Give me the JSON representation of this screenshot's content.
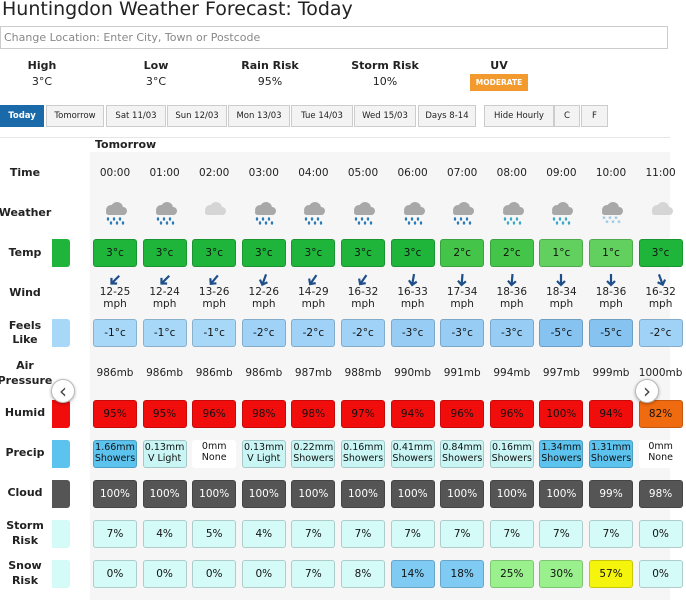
{
  "header": {
    "title": "Huntingdon Weather Forecast: Today",
    "search_placeholder": "Change Location: Enter City, Town or Postcode"
  },
  "summary": [
    {
      "label": "High",
      "value": "3°C"
    },
    {
      "label": "Low",
      "value": "3°C"
    },
    {
      "label": "Rain Risk",
      "value": "95%"
    },
    {
      "label": "Storm Risk",
      "value": "10%"
    },
    {
      "label": "UV",
      "value": "MODERATE"
    }
  ],
  "tabs": [
    "Today",
    "Tomorrow",
    "Sat 11/03",
    "Sun 12/03",
    "Mon 13/03",
    "Tue 14/03",
    "Wed 15/03",
    "Days 8-14"
  ],
  "options": [
    "Hide Hourly",
    "C",
    "F"
  ],
  "hourly": {
    "day": "Tomorrow",
    "time": {
      "label": "Time",
      "cells": [
        "00:00",
        "01:00",
        "02:00",
        "03:00",
        "04:00",
        "05:00",
        "06:00",
        "07:00",
        "08:00",
        "09:00",
        "10:00",
        "11:00"
      ]
    },
    "weather": {
      "label": "Weather",
      "icons": [
        "rain",
        "rain",
        "cloud",
        "rain",
        "rain",
        "rain",
        "rain",
        "rain",
        "sleet",
        "sleet",
        "snow",
        "cloud"
      ]
    },
    "temp": {
      "label": "Temp",
      "cells": [
        "3°c",
        "3°c",
        "3°c",
        "3°c",
        "3°c",
        "3°c",
        "3°c",
        "2°c",
        "2°c",
        "1°c",
        "1°c",
        "3°c"
      ],
      "colors": [
        "#1fb53b",
        "#1fb53b",
        "#1fb53b",
        "#1fb53b",
        "#1fb53b",
        "#1fb53b",
        "#1fb53b",
        "#45c44a",
        "#45c44a",
        "#62d05e",
        "#62d05e",
        "#1fb53b"
      ]
    },
    "wind": {
      "label": "Wind",
      "speeds": [
        "12-25",
        "12-24",
        "13-26",
        "12-26",
        "14-29",
        "16-32",
        "16-33",
        "17-34",
        "18-36",
        "18-34",
        "18-36",
        "16-32"
      ],
      "unit": "mph",
      "arrows": [
        225,
        225,
        220,
        200,
        215,
        215,
        190,
        185,
        185,
        180,
        180,
        160
      ]
    },
    "feels": {
      "label": "Feels Like",
      "cells": [
        "-1°c",
        "-1°c",
        "-1°c",
        "-2°c",
        "-2°c",
        "-2°c",
        "-3°c",
        "-3°c",
        "-3°c",
        "-5°c",
        "-5°c",
        "-2°c"
      ],
      "colors": [
        "#a8d8f8",
        "#a8d8f8",
        "#a8d8f8",
        "#9fd2f6",
        "#9fd2f6",
        "#9fd2f6",
        "#97cdf4",
        "#97cdf4",
        "#97cdf4",
        "#86c3f0",
        "#86c3f0",
        "#9fd2f6"
      ]
    },
    "pressure": {
      "label": "Air Pressure",
      "cells": [
        "986mb",
        "986mb",
        "986mb",
        "986mb",
        "987mb",
        "988mb",
        "990mb",
        "991mb",
        "994mb",
        "997mb",
        "999mb",
        "1000mb"
      ]
    },
    "humid": {
      "label": "Humid",
      "cells": [
        "95%",
        "95%",
        "96%",
        "98%",
        "98%",
        "97%",
        "94%",
        "96%",
        "96%",
        "100%",
        "94%",
        "82%"
      ],
      "colors": [
        "#f20d0d",
        "#f20d0d",
        "#f20d0d",
        "#f20d0d",
        "#f20d0d",
        "#f20d0d",
        "#f20d0d",
        "#f20d0d",
        "#f20d0d",
        "#f20d0d",
        "#f20d0d",
        "#f06a10"
      ]
    },
    "precip": {
      "label": "Precip",
      "amounts": [
        "1.66mm",
        "0.13mm",
        "0mm",
        "0.13mm",
        "0.22mm",
        "0.16mm",
        "0.41mm",
        "0.84mm",
        "0.16mm",
        "1.34mm",
        "1.31mm",
        "0mm"
      ],
      "kinds": [
        "Showers",
        "V Light",
        "None",
        "V Light",
        "Showers",
        "Showers",
        "Showers",
        "Showers",
        "Showers",
        "Showers",
        "Showers",
        "None"
      ],
      "colors": [
        "#5cc2ee",
        "#c9f6f4",
        "#ffffff",
        "#c9f6f4",
        "#c9f6f4",
        "#c9f6f4",
        "#c9f6f4",
        "#c9f6f4",
        "#c9f6f4",
        "#5cc2ee",
        "#5cc2ee",
        "#ffffff"
      ]
    },
    "cloud": {
      "label": "Cloud",
      "cells": [
        "100%",
        "100%",
        "100%",
        "100%",
        "100%",
        "100%",
        "100%",
        "100%",
        "100%",
        "100%",
        "99%",
        "98%"
      ],
      "color": "#555555"
    },
    "storm": {
      "label": "Storm Risk",
      "cells": [
        "7%",
        "4%",
        "5%",
        "4%",
        "7%",
        "7%",
        "7%",
        "7%",
        "7%",
        "7%",
        "7%",
        "0%"
      ],
      "color": "#d4fbf8"
    },
    "snow": {
      "label": "Snow Risk",
      "cells": [
        "0%",
        "0%",
        "0%",
        "0%",
        "7%",
        "8%",
        "14%",
        "18%",
        "25%",
        "30%",
        "57%",
        "0%"
      ],
      "colors": [
        "#d4fbf8",
        "#d4fbf8",
        "#d4fbf8",
        "#d4fbf8",
        "#d4fbf8",
        "#d4fbf8",
        "#7fcbf3",
        "#7fcbf3",
        "#9bf08e",
        "#9bf08e",
        "#f4f40c",
        "#d4fbf8"
      ]
    }
  }
}
